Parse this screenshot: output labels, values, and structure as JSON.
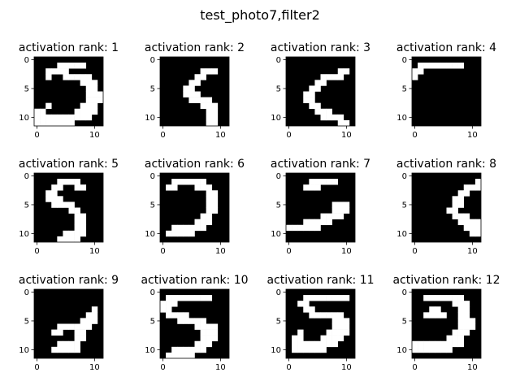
{
  "chart_data": {
    "type": "heatmap",
    "title": "test_photo7,filter2",
    "colormap": "gray",
    "value_range": [
      0,
      1
    ],
    "axes": [
      {
        "title": "activation rank: 1",
        "xticks": [
          "0",
          "10"
        ],
        "yticks": [
          "0",
          "5",
          "10"
        ],
        "rows": [
          "000000000000",
          "000011111000",
          "001111000000",
          "001001111100",
          "000000001110",
          "000000000110",
          "000000000111",
          "000000000111",
          "001000001110",
          "110000011110",
          "111111111100",
          "111111100000"
        ]
      },
      {
        "title": "activation rank: 2",
        "xticks": [
          "0",
          "10"
        ],
        "yticks": [
          "0",
          "5",
          "10"
        ],
        "rows": [
          "000000000000",
          "000000000000",
          "000000011100",
          "000000110000",
          "000001100000",
          "000011000000",
          "000011100000",
          "000001111000",
          "000000011100",
          "000000001100",
          "000000001100",
          "000000001100"
        ]
      },
      {
        "title": "activation rank: 3",
        "xticks": [
          "0",
          "10"
        ],
        "yticks": [
          "0",
          "5",
          "10"
        ],
        "rows": [
          "000000000000",
          "000000000000",
          "000000000110",
          "000000111100",
          "000001100000",
          "000011000000",
          "000110000000",
          "000110000000",
          "000011000000",
          "000001110000",
          "000000111100",
          "000000000110"
        ]
      },
      {
        "title": "activation rank: 4",
        "xticks": [
          "0",
          "10"
        ],
        "yticks": [
          "0",
          "5",
          "10"
        ],
        "rows": [
          "000000000000",
          "011111111000",
          "110000000000",
          "100000000000",
          "000000000000",
          "000000000000",
          "000000000000",
          "000000000000",
          "000000000000",
          "000000000000",
          "000000000000",
          "000000000000"
        ]
      },
      {
        "title": "activation rank: 5",
        "xticks": [
          "0",
          "10"
        ],
        "yticks": [
          "0",
          "5",
          "10"
        ],
        "rows": [
          "000000000000",
          "000011110000",
          "000110011000",
          "001100000000",
          "001110000000",
          "000111100000",
          "000000110000",
          "000000011000",
          "000000011000",
          "000000011000",
          "000001111000",
          "000011110000"
        ]
      },
      {
        "title": "activation rank: 6",
        "xticks": [
          "0",
          "10"
        ],
        "yticks": [
          "0",
          "5",
          "10"
        ],
        "rows": [
          "000000000000",
          "001111110000",
          "011000111000",
          "000000001100",
          "000000001100",
          "000000001100",
          "000000001100",
          "000000011000",
          "000000111000",
          "001111110000",
          "011111000000",
          "000000000000"
        ]
      },
      {
        "title": "activation rank: 7",
        "xticks": [
          "0",
          "10"
        ],
        "yticks": [
          "0",
          "5",
          "10"
        ],
        "rows": [
          "000000000000",
          "000011111000",
          "000111000000",
          "000000000000",
          "000000000000",
          "000000001110",
          "000000001110",
          "000000111100",
          "000111110000",
          "111111000000",
          "000000000000",
          "000000000000"
        ]
      },
      {
        "title": "activation rank: 8",
        "xticks": [
          "0",
          "10"
        ],
        "yticks": [
          "0",
          "5",
          "10"
        ],
        "rows": [
          "000000000000",
          "000000000001",
          "000000000111",
          "000000001100",
          "000000011000",
          "000000011000",
          "000000110000",
          "000000011100",
          "000000001111",
          "000000000111",
          "000000000011",
          "000000000000"
        ]
      },
      {
        "title": "activation rank: 9",
        "xticks": [
          "0",
          "10"
        ],
        "yticks": [
          "0",
          "5",
          "10"
        ],
        "rows": [
          "000000000000",
          "000000000000",
          "000000000000",
          "000000000010",
          "000000000110",
          "000000001110",
          "000011111100",
          "000110011000",
          "000000011000",
          "000011110000",
          "000111110000",
          "000000000000"
        ]
      },
      {
        "title": "activation rank: 10",
        "xticks": [
          "0",
          "10"
        ],
        "yticks": [
          "0",
          "5",
          "10"
        ],
        "rows": [
          "000000000000",
          "011111111000",
          "111000000000",
          "110000000000",
          "011110000000",
          "000111110000",
          "000000111100",
          "000000011100",
          "000000011100",
          "000000111000",
          "001111110000",
          "011111000000"
        ]
      },
      {
        "title": "activation rank: 11",
        "xticks": [
          "0",
          "10"
        ],
        "yticks": [
          "0",
          "5",
          "10"
        ],
        "rows": [
          "000000000000",
          "000111111110",
          "001100000000",
          "000110000000",
          "000011111100",
          "000000001110",
          "000000001110",
          "001000011110",
          "011000111100",
          "011111111000",
          "011111100000",
          "000000000000"
        ]
      },
      {
        "title": "activation rank: 12",
        "xticks": [
          "0",
          "10"
        ],
        "yticks": [
          "0",
          "5",
          "10"
        ],
        "rows": [
          "000000000000",
          "001111111000",
          "000000011100",
          "000110001100",
          "001111001100",
          "000000001110",
          "000000001110",
          "000000011100",
          "000000111000",
          "111111111000",
          "111111100000",
          "000000000000"
        ]
      }
    ]
  }
}
